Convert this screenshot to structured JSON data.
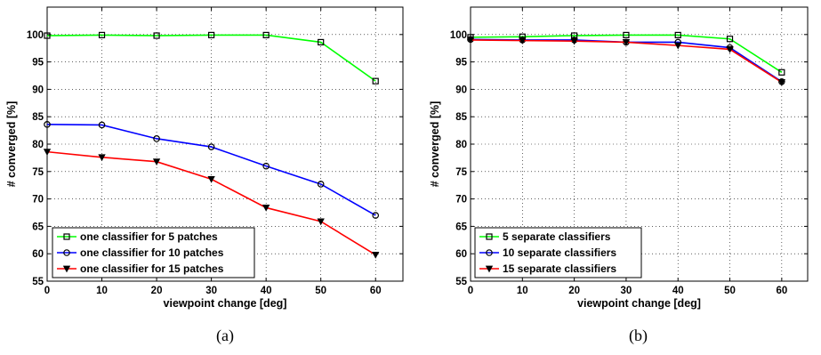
{
  "chart_data": [
    {
      "type": "line",
      "panel_label": "(a)",
      "xlabel": "viewpoint change [deg]",
      "ylabel": "# converged [%]",
      "x": [
        0,
        10,
        20,
        30,
        40,
        50,
        60
      ],
      "xticks": [
        "0",
        "10",
        "20",
        "30",
        "40",
        "50",
        "60"
      ],
      "yticks": [
        "55",
        "60",
        "65",
        "70",
        "75",
        "80",
        "85",
        "90",
        "95",
        "100"
      ],
      "xlim": [
        0,
        65
      ],
      "ylim": [
        55,
        105
      ],
      "grid": true,
      "legend_position": "bottom-left",
      "series": [
        {
          "name": "one classifier for 5 patches",
          "color": "#00ff00",
          "marker": "square",
          "values": [
            99.8,
            99.9,
            99.8,
            99.9,
            99.9,
            98.6,
            91.5
          ]
        },
        {
          "name": "one classifier for 10 patches",
          "color": "#0000ff",
          "marker": "circle",
          "values": [
            83.6,
            83.5,
            81.0,
            79.5,
            76.0,
            72.7,
            67.0
          ]
        },
        {
          "name": "one classifier for 15 patches",
          "color": "#ff0000",
          "marker": "triangle-down",
          "values": [
            78.6,
            77.6,
            76.8,
            73.6,
            68.4,
            65.9,
            59.8
          ]
        }
      ]
    },
    {
      "type": "line",
      "panel_label": "(b)",
      "xlabel": "viewpoint change [deg]",
      "ylabel": "# converged [%]",
      "x": [
        0,
        10,
        20,
        30,
        40,
        50,
        60
      ],
      "xticks": [
        "0",
        "10",
        "20",
        "30",
        "40",
        "50",
        "60"
      ],
      "yticks": [
        "55",
        "60",
        "65",
        "70",
        "75",
        "80",
        "85",
        "90",
        "95",
        "100"
      ],
      "xlim": [
        0,
        65
      ],
      "ylim": [
        55,
        105
      ],
      "grid": true,
      "legend_position": "bottom-left",
      "series": [
        {
          "name": "5 separate classifiers",
          "color": "#00ff00",
          "marker": "square",
          "values": [
            99.5,
            99.6,
            99.8,
            99.9,
            99.9,
            99.2,
            93.1
          ]
        },
        {
          "name": "10 separate classifiers",
          "color": "#0000ff",
          "marker": "circle",
          "values": [
            99.1,
            99.0,
            99.0,
            98.6,
            98.6,
            97.6,
            91.4
          ]
        },
        {
          "name": "15 separate classifiers",
          "color": "#ff0000",
          "marker": "triangle-down",
          "values": [
            99.0,
            98.9,
            98.8,
            98.6,
            98.0,
            97.3,
            91.3
          ]
        }
      ]
    }
  ]
}
